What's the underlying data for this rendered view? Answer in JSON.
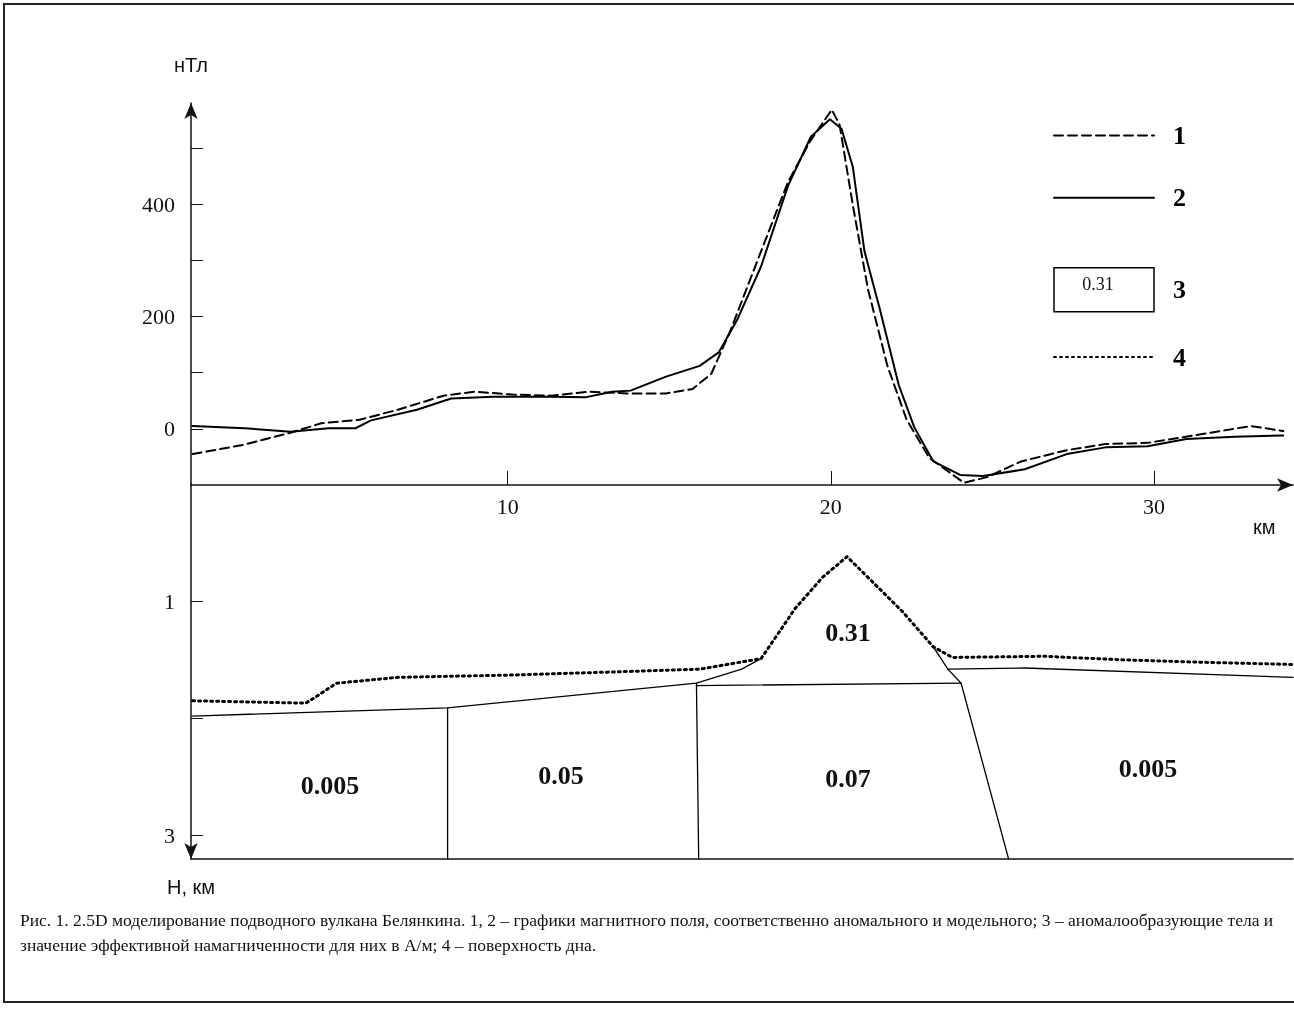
{
  "chart_data": [
    {
      "type": "line",
      "xlabel": "км",
      "ylabel": "нТл",
      "xlim": [
        0.2,
        34.3
      ],
      "ylim": [
        -100,
        580
      ],
      "xticks": [
        10,
        20,
        30
      ],
      "yticks": [
        0,
        {
          "value": 100,
          "label": null
        },
        200,
        {
          "value": 300,
          "label": null
        },
        400,
        {
          "value": 500,
          "label": null
        }
      ],
      "legend": "top right",
      "marker": "none",
      "series": [
        {
          "name": "1",
          "color": "#000000",
          "line_style": "dashed",
          "x": [
            0.25,
            1.86,
            3.28,
            4.23,
            5.41,
            6.6,
            8.02,
            8.97,
            10.15,
            11.34,
            12.52,
            13.7,
            14.9,
            15.72,
            16.3,
            16.88,
            17.84,
            18.67,
            19.38,
            20.03,
            20.27,
            20.68,
            21.15,
            21.75,
            22.34,
            23.05,
            24.12,
            24.83,
            25.89,
            27.3,
            28.5,
            29.8,
            31.3,
            33.0,
            34.0
          ],
          "values": [
            -45,
            -28,
            -7,
            10,
            16,
            34,
            59,
            66,
            61,
            59,
            66,
            63,
            63,
            71,
            98,
            173,
            316,
            439,
            514,
            568,
            541,
            398,
            248,
            112,
            17,
            -52,
            -96,
            -86,
            -58,
            -38,
            -27,
            -25,
            -11,
            5,
            -4
          ]
        },
        {
          "name": "2",
          "color": "#000000",
          "line_style": "solid",
          "x": [
            0.25,
            1.86,
            3.28,
            4.46,
            5.29,
            5.77,
            7.19,
            8.25,
            9.56,
            11.34,
            12.4,
            13.23,
            13.8,
            14.9,
            15.94,
            16.53,
            17.1,
            17.84,
            18.67,
            19.38,
            19.97,
            20.33,
            20.68,
            21.04,
            21.51,
            22.1,
            22.58,
            23.17,
            24.0,
            24.71,
            26.0,
            27.3,
            28.5,
            29.8,
            31.0,
            32.5,
            34.0
          ],
          "values": [
            5,
            1,
            -5,
            1,
            1,
            15,
            34,
            54,
            57,
            57,
            56,
            66,
            68,
            93,
            112,
            136,
            194,
            289,
            432,
            520,
            551,
            534,
            466,
            316,
            214,
            78,
            3,
            -58,
            -82,
            -84,
            -72,
            -45,
            -33,
            -31,
            -18,
            -14,
            -12
          ]
        }
      ]
    },
    {
      "type": "line",
      "ylabel": "Н, км",
      "xlim": [
        0.2,
        34.3
      ],
      "ylim": [
        3.2,
        0
      ],
      "yticks": [
        1,
        {
          "value": 2,
          "label": null
        },
        3
      ],
      "tick_labels": "y",
      "legend": "top right",
      "marker": "none",
      "series": [
        {
          "name": "3",
          "color": "#000000",
          "line_style": "solid",
          "x": [
            0.25,
            8.14,
            15.84,
            17.24,
            17.84
          ],
          "values": [
            1.98,
            1.91,
            1.7,
            1.58,
            1.49
          ]
        },
        {
          "name": "4",
          "color": "#000000",
          "line_style": "dotted",
          "x": [
            0.25,
            3.75,
            4.1,
            4.7,
            6.6,
            10.15,
            13.7,
            15.94,
            17.84,
            18.9,
            19.73,
            20.5,
            21.27,
            22.22,
            23.17,
            23.76,
            26.6,
            28.97,
            31.3,
            34.3
          ],
          "values": [
            1.85,
            1.87,
            1.81,
            1.7,
            1.65,
            1.63,
            1.6,
            1.58,
            1.49,
            1.06,
            0.8,
            0.62,
            0.83,
            1.09,
            1.39,
            1.48,
            1.47,
            1.5,
            1.52,
            1.54
          ]
        },
        {
          "color": "#000000",
          "line_style": "solid",
          "x": [
            8.14,
            8.14
          ],
          "values": [
            1.91,
            3.2
          ]
        },
        {
          "color": "#000000",
          "line_style": "solid",
          "x": [
            15.84,
            15.91
          ],
          "values": [
            1.7,
            3.2
          ]
        },
        {
          "color": "#000000",
          "line_style": "solid",
          "x": [
            23.17,
            23.62,
            24.03,
            25.5
          ],
          "values": [
            1.39,
            1.58,
            1.7,
            3.2
          ]
        },
        {
          "color": "#000000",
          "line_style": "solid",
          "x": [
            15.84,
            24.03
          ],
          "values": [
            1.72,
            1.7
          ]
        },
        {
          "color": "#000000",
          "line_style": "solid",
          "x": [
            23.62,
            26.0,
            34.3
          ],
          "values": [
            1.58,
            1.57,
            1.65
          ]
        }
      ],
      "annotations": [
        "0.005",
        "0.05",
        "0.31",
        "0.07",
        "0.005",
        "0.31",
        "Рис. 1. 2.5D моделирование подводного вулкана Белянкина. 1, 2 – графики магнитного поля, соответственно аномального и модельного; 3 – аномалообразующие тела и значение эффективной намагниченности для них в А/м; 4 – поверхность дна."
      ]
    }
  ]
}
